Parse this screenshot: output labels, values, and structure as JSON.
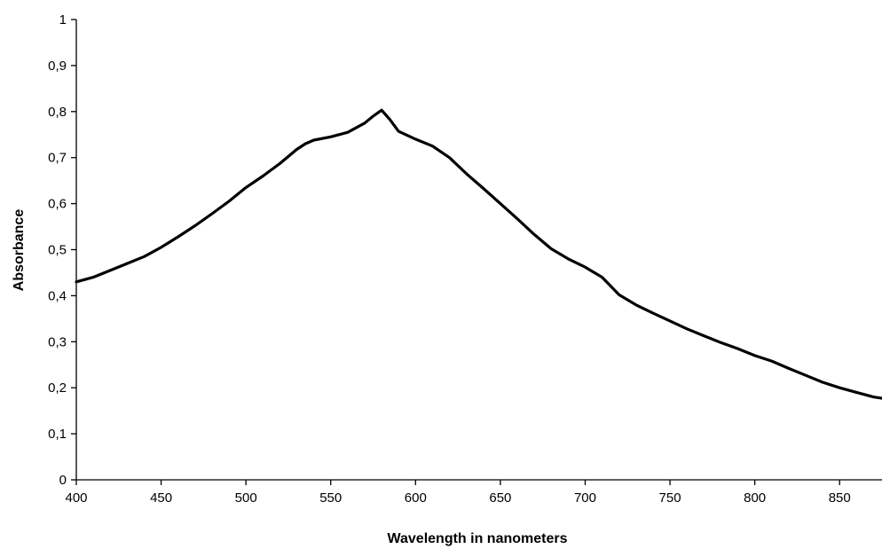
{
  "chart_data": {
    "type": "line",
    "title": "",
    "xlabel": "Wavelength in nanometers",
    "ylabel": "Absorbance",
    "xlim": [
      400,
      875
    ],
    "ylim": [
      0,
      1
    ],
    "x_ticks": [
      400,
      450,
      500,
      550,
      600,
      650,
      700,
      750,
      800,
      850
    ],
    "x_tick_labels": [
      "400",
      "450",
      "500",
      "550",
      "600",
      "650",
      "700",
      "750",
      "800",
      "850"
    ],
    "y_ticks": [
      0,
      0.1,
      0.2,
      0.3,
      0.4,
      0.5,
      0.6,
      0.7,
      0.8,
      0.9,
      1
    ],
    "y_tick_labels": [
      "0",
      "0,1",
      "0,2",
      "0,3",
      "0,4",
      "0,5",
      "0,6",
      "0,7",
      "0,8",
      "0,9",
      "1"
    ],
    "grid": false,
    "legend": "none",
    "line_color": "#000000",
    "series": [
      {
        "x": [
          400,
          410,
          420,
          430,
          440,
          450,
          460,
          470,
          480,
          490,
          500,
          510,
          520,
          530,
          535,
          540,
          550,
          560,
          570,
          575,
          580,
          585,
          590,
          600,
          610,
          620,
          630,
          640,
          650,
          660,
          670,
          680,
          690,
          700,
          710,
          720,
          730,
          740,
          750,
          760,
          770,
          780,
          790,
          800,
          810,
          820,
          830,
          840,
          850,
          860,
          870,
          875
        ],
        "y": [
          0.43,
          0.44,
          0.455,
          0.47,
          0.485,
          0.505,
          0.528,
          0.552,
          0.578,
          0.605,
          0.635,
          0.66,
          0.687,
          0.718,
          0.73,
          0.738,
          0.745,
          0.755,
          0.775,
          0.79,
          0.803,
          0.782,
          0.757,
          0.74,
          0.725,
          0.7,
          0.665,
          0.633,
          0.6,
          0.567,
          0.533,
          0.502,
          0.48,
          0.462,
          0.44,
          0.402,
          0.38,
          0.362,
          0.345,
          0.328,
          0.313,
          0.298,
          0.285,
          0.27,
          0.258,
          0.242,
          0.227,
          0.212,
          0.2,
          0.19,
          0.18,
          0.177
        ]
      }
    ]
  }
}
